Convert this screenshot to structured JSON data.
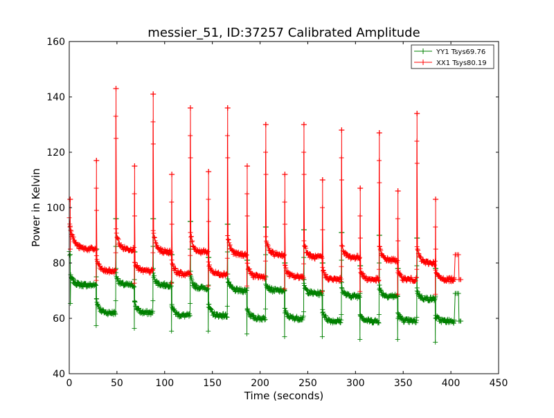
{
  "chart_data": {
    "type": "line",
    "title": "messier_51, ID:37257 Calibrated Amplitude",
    "xlabel": "Time (seconds)",
    "ylabel": "Power in Kelvin",
    "xlim": [
      0,
      450
    ],
    "ylim": [
      40,
      160
    ],
    "xticks": [
      0,
      50,
      100,
      150,
      200,
      250,
      300,
      350,
      400,
      450
    ],
    "yticks": [
      40,
      60,
      80,
      100,
      120,
      140,
      160
    ],
    "xtick_labels": [
      "0",
      "50",
      "100",
      "150",
      "200",
      "250",
      "300",
      "350",
      "400",
      "450"
    ],
    "ytick_labels": [
      "40",
      "60",
      "80",
      "100",
      "120",
      "140",
      "160"
    ],
    "grid": false,
    "legend_position": "top-right",
    "marker": "+",
    "series": [
      {
        "name": "YY1 Tsys69.76",
        "color": "#008000",
        "baseline_segments": [
          {
            "x0": 0,
            "x1": 1.5,
            "start": 84,
            "end": 83
          },
          {
            "x0": 1.5,
            "x1": 28.5,
            "start": 75,
            "end": 72
          },
          {
            "x0": 28.5,
            "x1": 49.0,
            "start": 67,
            "end": 62
          },
          {
            "x0": 49.0,
            "x1": 68.5,
            "start": 76,
            "end": 72
          },
          {
            "x0": 68.5,
            "x1": 88.0,
            "start": 66,
            "end": 62
          },
          {
            "x0": 88.0,
            "x1": 107.5,
            "start": 76,
            "end": 72
          },
          {
            "x0": 107.5,
            "x1": 127.0,
            "start": 65,
            "end": 61
          },
          {
            "x0": 127.0,
            "x1": 146.0,
            "start": 75,
            "end": 71
          },
          {
            "x0": 146.0,
            "x1": 166.0,
            "start": 65,
            "end": 61
          },
          {
            "x0": 166.0,
            "x1": 186.5,
            "start": 74,
            "end": 70
          },
          {
            "x0": 186.5,
            "x1": 206.0,
            "start": 64,
            "end": 60
          },
          {
            "x0": 206.0,
            "x1": 226.0,
            "start": 73,
            "end": 70
          },
          {
            "x0": 226.0,
            "x1": 246.0,
            "start": 63,
            "end": 60
          },
          {
            "x0": 246.0,
            "x1": 265.5,
            "start": 72,
            "end": 69
          },
          {
            "x0": 265.5,
            "x1": 285.5,
            "start": 63,
            "end": 59
          },
          {
            "x0": 285.5,
            "x1": 305.0,
            "start": 71,
            "end": 68
          },
          {
            "x0": 305.0,
            "x1": 325.0,
            "start": 62,
            "end": 59
          },
          {
            "x0": 325.0,
            "x1": 344.5,
            "start": 71,
            "end": 68
          },
          {
            "x0": 344.5,
            "x1": 364.5,
            "start": 62,
            "end": 59
          },
          {
            "x0": 364.5,
            "x1": 384.0,
            "start": 70,
            "end": 67
          },
          {
            "x0": 384.0,
            "x1": 404.0,
            "start": 61,
            "end": 59
          }
        ],
        "spikes": [
          {
            "x": 28.5,
            "y": 85
          },
          {
            "x": 49.0,
            "y": 96
          },
          {
            "x": 68.5,
            "y": 84
          },
          {
            "x": 88.0,
            "y": 96
          },
          {
            "x": 107.5,
            "y": 83
          },
          {
            "x": 127.0,
            "y": 95
          },
          {
            "x": 146.0,
            "y": 82
          },
          {
            "x": 166.0,
            "y": 94
          },
          {
            "x": 186.5,
            "y": 81
          },
          {
            "x": 206.0,
            "y": 93
          },
          {
            "x": 226.0,
            "y": 80
          },
          {
            "x": 246.0,
            "y": 92
          },
          {
            "x": 265.5,
            "y": 80
          },
          {
            "x": 285.5,
            "y": 91
          },
          {
            "x": 305.0,
            "y": 79
          },
          {
            "x": 325.0,
            "y": 90
          },
          {
            "x": 344.5,
            "y": 78
          },
          {
            "x": 364.5,
            "y": 89
          },
          {
            "x": 384.0,
            "y": 78
          }
        ],
        "tail": [
          {
            "x": 403.5,
            "y": 59
          },
          {
            "x": 404.5,
            "y": 69
          },
          {
            "x": 405.5,
            "y": 69
          },
          {
            "x": 407.0,
            "y": 69
          },
          {
            "x": 408.0,
            "y": 69
          },
          {
            "x": 408.5,
            "y": 59
          },
          {
            "x": 409.5,
            "y": 59
          },
          {
            "x": 410.5,
            "y": 59
          }
        ]
      },
      {
        "name": "XX1 Tsys80.19",
        "color": "#ff0000",
        "baseline_segments": [
          {
            "x0": 0,
            "x1": 28.5,
            "start": 96,
            "end": 85
          },
          {
            "x0": 28.5,
            "x1": 49.0,
            "start": 82,
            "end": 77
          },
          {
            "x0": 49.0,
            "x1": 68.5,
            "start": 92,
            "end": 85
          },
          {
            "x0": 68.5,
            "x1": 88.0,
            "start": 81,
            "end": 77
          },
          {
            "x0": 88.0,
            "x1": 107.5,
            "start": 92,
            "end": 84
          },
          {
            "x0": 107.5,
            "x1": 127.0,
            "start": 81,
            "end": 76
          },
          {
            "x0": 127.0,
            "x1": 146.0,
            "start": 91,
            "end": 84
          },
          {
            "x0": 146.0,
            "x1": 166.0,
            "start": 80,
            "end": 76
          },
          {
            "x0": 166.0,
            "x1": 186.5,
            "start": 90,
            "end": 83
          },
          {
            "x0": 186.5,
            "x1": 206.0,
            "start": 80,
            "end": 75
          },
          {
            "x0": 206.0,
            "x1": 226.0,
            "start": 89,
            "end": 83
          },
          {
            "x0": 226.0,
            "x1": 246.0,
            "start": 79,
            "end": 75
          },
          {
            "x0": 246.0,
            "x1": 265.5,
            "start": 88,
            "end": 82
          },
          {
            "x0": 265.5,
            "x1": 285.5,
            "start": 78,
            "end": 74
          },
          {
            "x0": 285.5,
            "x1": 305.0,
            "start": 87,
            "end": 82
          },
          {
            "x0": 305.0,
            "x1": 325.0,
            "start": 78,
            "end": 74
          },
          {
            "x0": 325.0,
            "x1": 344.5,
            "start": 86,
            "end": 81
          },
          {
            "x0": 344.5,
            "x1": 364.5,
            "start": 77,
            "end": 74
          },
          {
            "x0": 364.5,
            "x1": 384.0,
            "start": 86,
            "end": 80
          },
          {
            "x0": 384.0,
            "x1": 404.0,
            "start": 77,
            "end": 74
          }
        ],
        "spikes": [
          {
            "x": 1.0,
            "y": 103
          },
          {
            "x": 28.5,
            "y": 117
          },
          {
            "x": 49.0,
            "y": 143
          },
          {
            "x": 68.5,
            "y": 115
          },
          {
            "x": 88.0,
            "y": 141
          },
          {
            "x": 107.5,
            "y": 112
          },
          {
            "x": 127.0,
            "y": 136
          },
          {
            "x": 146.0,
            "y": 113
          },
          {
            "x": 166.0,
            "y": 136
          },
          {
            "x": 186.5,
            "y": 115
          },
          {
            "x": 206.0,
            "y": 130
          },
          {
            "x": 226.0,
            "y": 112
          },
          {
            "x": 246.0,
            "y": 130
          },
          {
            "x": 265.5,
            "y": 110
          },
          {
            "x": 285.5,
            "y": 128
          },
          {
            "x": 305.0,
            "y": 107
          },
          {
            "x": 325.0,
            "y": 127
          },
          {
            "x": 344.5,
            "y": 106
          },
          {
            "x": 364.5,
            "y": 134
          },
          {
            "x": 384.0,
            "y": 103
          }
        ],
        "tail": [
          {
            "x": 403.5,
            "y": 74
          },
          {
            "x": 404.5,
            "y": 83
          },
          {
            "x": 405.5,
            "y": 83
          },
          {
            "x": 407.0,
            "y": 83
          },
          {
            "x": 408.0,
            "y": 83
          },
          {
            "x": 408.5,
            "y": 74
          },
          {
            "x": 409.5,
            "y": 74
          },
          {
            "x": 410.5,
            "y": 74
          }
        ]
      }
    ]
  }
}
